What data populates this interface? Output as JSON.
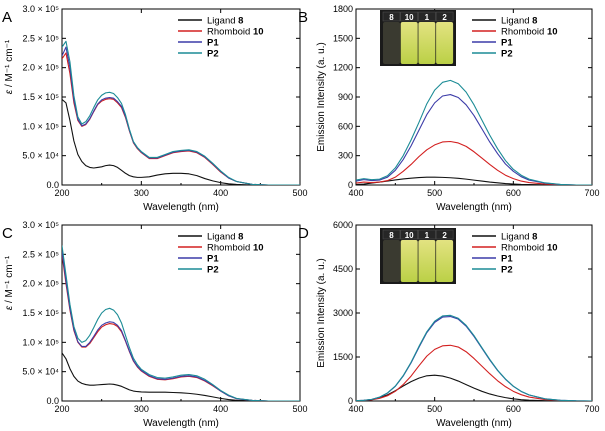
{
  "colors": {
    "ligand": "#111111",
    "rhomboid": "#d32020",
    "p1": "#3c3ca8",
    "p2": "#1c8c96",
    "vial_glow_top": "#f4f48a",
    "vial_glow_bottom": "#c9e04a",
    "vial_bg": "#1a1a1a"
  },
  "chart_data": [
    {
      "panel": "A",
      "type": "line",
      "xlabel": "Wavelength (nm)",
      "ylabel_prefix": "ε",
      "ylabel_suffix": " / M⁻¹ cm⁻¹",
      "xlim": [
        200,
        500
      ],
      "ylim": [
        0,
        300000
      ],
      "x_ticks": [
        "200",
        "300",
        "400",
        "500"
      ],
      "x_tick_values": [
        200,
        300,
        400,
        500
      ],
      "y_ticks": [
        "0.0",
        "5.0 × 10⁴",
        "1.0 × 10⁵",
        "1.5 × 10⁵",
        "2.0 × 10⁵",
        "2.5 × 10⁵",
        "3.0 × 10⁵"
      ],
      "y_tick_values": [
        0,
        50000,
        100000,
        150000,
        200000,
        250000,
        300000
      ],
      "legend": [
        "Ligand 8",
        "Rhomboid 10",
        "P1",
        "P2"
      ],
      "x": [
        200,
        205,
        210,
        215,
        220,
        225,
        230,
        235,
        240,
        245,
        250,
        255,
        260,
        265,
        270,
        275,
        280,
        285,
        290,
        295,
        300,
        310,
        320,
        330,
        340,
        350,
        360,
        370,
        380,
        390,
        400,
        410,
        420,
        440,
        460,
        480,
        500
      ],
      "series": [
        {
          "name": "Ligand 8",
          "key": "ligand",
          "values": [
            146000,
            140000,
            110000,
            75000,
            52000,
            40000,
            33000,
            30000,
            29000,
            30000,
            31000,
            33000,
            34000,
            33000,
            30000,
            25000,
            20000,
            16000,
            14000,
            13000,
            13000,
            14000,
            17000,
            19000,
            20000,
            20000,
            19000,
            16000,
            11000,
            7000,
            4000,
            2000,
            1000,
            0,
            0,
            0,
            0
          ]
        },
        {
          "name": "Rhomboid 10",
          "key": "rhomboid",
          "values": [
            215000,
            225000,
            190000,
            140000,
            110000,
            100000,
            103000,
            112000,
            125000,
            137000,
            143000,
            146000,
            147000,
            146000,
            140000,
            132000,
            115000,
            92000,
            72000,
            62000,
            55000,
            45000,
            45000,
            50000,
            55000,
            57000,
            58000,
            55000,
            47000,
            35000,
            22000,
            12000,
            6000,
            1000,
            0,
            0,
            0
          ]
        },
        {
          "name": "P1",
          "key": "p1",
          "values": [
            220000,
            235000,
            200000,
            145000,
            112000,
            101000,
            104000,
            113000,
            126000,
            138000,
            145000,
            148000,
            149000,
            148000,
            142000,
            134000,
            117000,
            93000,
            73000,
            63000,
            56000,
            46000,
            46000,
            51000,
            56000,
            58000,
            59000,
            56000,
            48000,
            36000,
            23000,
            12000,
            6000,
            1000,
            0,
            0,
            0
          ]
        },
        {
          "name": "P2",
          "key": "p2",
          "values": [
            235000,
            245000,
            210000,
            152000,
            116000,
            104000,
            108000,
            118000,
            132000,
            145000,
            153000,
            157000,
            158000,
            156000,
            149000,
            139000,
            120000,
            95000,
            74000,
            64000,
            57000,
            47000,
            47000,
            52000,
            57000,
            59000,
            60000,
            57000,
            49000,
            37000,
            24000,
            13000,
            6000,
            1000,
            0,
            0,
            0
          ]
        }
      ]
    },
    {
      "panel": "B",
      "type": "line",
      "xlabel": "Wavelength (nm)",
      "ylabel": "Emission Intensity (a. u.)",
      "xlim": [
        400,
        700
      ],
      "ylim": [
        0,
        1800
      ],
      "x_ticks": [
        "400",
        "500",
        "600",
        "700"
      ],
      "x_tick_values": [
        400,
        500,
        600,
        700
      ],
      "y_ticks": [
        "0",
        "300",
        "600",
        "900",
        "1200",
        "1500",
        "1800"
      ],
      "y_tick_values": [
        0,
        300,
        600,
        900,
        1200,
        1500,
        1800
      ],
      "legend": [
        "Ligand 8",
        "Rhomboid 10",
        "P1",
        "P2"
      ],
      "vial_labels": [
        "8",
        "10",
        "1",
        "2"
      ],
      "x": [
        400,
        410,
        420,
        430,
        440,
        450,
        460,
        470,
        480,
        490,
        500,
        510,
        520,
        530,
        540,
        550,
        560,
        570,
        580,
        590,
        600,
        610,
        620,
        640,
        660,
        680,
        700
      ],
      "series": [
        {
          "name": "Ligand 8",
          "key": "ligand",
          "values": [
            5,
            10,
            20,
            30,
            40,
            52,
            62,
            70,
            76,
            80,
            80,
            78,
            74,
            68,
            60,
            50,
            40,
            30,
            22,
            15,
            10,
            6,
            4,
            2,
            0,
            0,
            0
          ]
        },
        {
          "name": "Rhomboid 10",
          "key": "rhomboid",
          "values": [
            20,
            30,
            25,
            30,
            45,
            80,
            140,
            210,
            290,
            360,
            410,
            440,
            445,
            430,
            395,
            340,
            275,
            210,
            150,
            100,
            65,
            40,
            25,
            10,
            3,
            0,
            0
          ]
        },
        {
          "name": "P1",
          "key": "p1",
          "values": [
            40,
            55,
            45,
            50,
            80,
            150,
            260,
            400,
            560,
            720,
            840,
            910,
            925,
            895,
            820,
            710,
            575,
            440,
            320,
            215,
            140,
            85,
            50,
            20,
            5,
            0,
            0
          ]
        },
        {
          "name": "P2",
          "key": "p2",
          "values": [
            50,
            65,
            55,
            60,
            95,
            175,
            300,
            460,
            640,
            830,
            970,
            1050,
            1070,
            1035,
            950,
            820,
            665,
            510,
            370,
            250,
            160,
            100,
            60,
            22,
            6,
            0,
            0
          ]
        }
      ]
    },
    {
      "panel": "C",
      "type": "line",
      "xlabel": "Wavelength (nm)",
      "ylabel_prefix": "ε",
      "ylabel_suffix": " / M⁻¹ cm⁻¹",
      "xlim": [
        200,
        500
      ],
      "ylim": [
        0,
        300000
      ],
      "x_ticks": [
        "200",
        "300",
        "400",
        "500"
      ],
      "x_tick_values": [
        200,
        300,
        400,
        500
      ],
      "y_ticks": [
        "0.0",
        "5.0 × 10⁴",
        "1.0 × 10⁵",
        "1.5 × 10⁵",
        "2.0 × 10⁵",
        "2.5 × 10⁵",
        "3.0 × 10⁵"
      ],
      "y_tick_values": [
        0,
        50000,
        100000,
        150000,
        200000,
        250000,
        300000
      ],
      "legend": [
        "Ligand 8",
        "Rhomboid 10",
        "P1",
        "P2"
      ],
      "x": [
        200,
        205,
        210,
        215,
        220,
        225,
        230,
        235,
        240,
        245,
        250,
        255,
        260,
        265,
        270,
        275,
        280,
        285,
        290,
        295,
        300,
        310,
        320,
        330,
        340,
        350,
        360,
        370,
        380,
        390,
        400,
        410,
        420,
        440,
        460,
        480,
        500
      ],
      "series": [
        {
          "name": "Ligand 8",
          "key": "ligand",
          "values": [
            82000,
            72000,
            55000,
            42000,
            34000,
            30000,
            28000,
            27000,
            27000,
            27500,
            28000,
            28500,
            29000,
            28500,
            27000,
            25000,
            22000,
            19000,
            17000,
            16000,
            15500,
            15000,
            15000,
            15000,
            14500,
            14000,
            13000,
            11500,
            9500,
            7000,
            4500,
            2500,
            1200,
            300,
            0,
            0,
            0
          ]
        },
        {
          "name": "Rhomboid 10",
          "key": "rhomboid",
          "values": [
            250000,
            200000,
            155000,
            120000,
            100000,
            92000,
            92000,
            98000,
            108000,
            118000,
            126000,
            130000,
            132000,
            131000,
            127000,
            118000,
            102000,
            84000,
            68000,
            58000,
            51000,
            42000,
            37000,
            36000,
            38000,
            41000,
            42000,
            40000,
            34000,
            26000,
            17000,
            9000,
            4000,
            1000,
            0,
            0,
            0
          ]
        },
        {
          "name": "P1",
          "key": "p1",
          "values": [
            255000,
            205000,
            158000,
            122000,
            101000,
            93000,
            93000,
            100000,
            110000,
            121000,
            129000,
            133000,
            135000,
            134000,
            129000,
            120000,
            103000,
            85000,
            69000,
            59000,
            52000,
            43000,
            38000,
            37000,
            39000,
            42000,
            43000,
            41000,
            35000,
            27000,
            17000,
            9000,
            4000,
            1000,
            0,
            0,
            0
          ]
        },
        {
          "name": "P2",
          "key": "p2",
          "values": [
            265000,
            215000,
            165000,
            127000,
            107000,
            100000,
            103000,
            112000,
            125000,
            139000,
            150000,
            156000,
            158000,
            155000,
            147000,
            133000,
            112000,
            91000,
            73000,
            62000,
            54000,
            45000,
            40000,
            39000,
            41000,
            44000,
            45000,
            43000,
            37000,
            28000,
            18000,
            10000,
            4500,
            1000,
            0,
            0,
            0
          ]
        }
      ]
    },
    {
      "panel": "D",
      "type": "line",
      "xlabel": "Wavelength (nm)",
      "ylabel": "Emission Intensity (a. u.)",
      "xlim": [
        400,
        700
      ],
      "ylim": [
        0,
        6000
      ],
      "x_ticks": [
        "400",
        "500",
        "600",
        "700"
      ],
      "x_tick_values": [
        400,
        500,
        600,
        700
      ],
      "y_ticks": [
        "0",
        "1500",
        "3000",
        "4500",
        "6000"
      ],
      "y_tick_values": [
        0,
        1500,
        3000,
        4500,
        6000
      ],
      "legend": [
        "Ligand 8",
        "Rhomboid 10",
        "P1",
        "P2"
      ],
      "vial_labels": [
        "8",
        "10",
        "1",
        "2"
      ],
      "x": [
        400,
        410,
        420,
        430,
        440,
        450,
        460,
        470,
        480,
        490,
        500,
        510,
        520,
        530,
        540,
        550,
        560,
        570,
        580,
        590,
        600,
        610,
        620,
        640,
        660,
        680,
        700
      ],
      "series": [
        {
          "name": "Ligand 8",
          "key": "ligand",
          "values": [
            10,
            20,
            50,
            110,
            210,
            350,
            510,
            660,
            780,
            860,
            880,
            850,
            780,
            680,
            560,
            440,
            330,
            240,
            170,
            115,
            75,
            45,
            28,
            10,
            3,
            0,
            0
          ]
        },
        {
          "name": "Rhomboid 10",
          "key": "rhomboid",
          "values": [
            10,
            20,
            40,
            90,
            180,
            330,
            560,
            850,
            1200,
            1530,
            1760,
            1880,
            1900,
            1840,
            1680,
            1450,
            1190,
            930,
            690,
            490,
            330,
            215,
            135,
            50,
            15,
            3,
            0
          ]
        },
        {
          "name": "P1",
          "key": "p1",
          "values": [
            10,
            25,
            55,
            130,
            270,
            500,
            850,
            1300,
            1830,
            2330,
            2680,
            2860,
            2880,
            2790,
            2550,
            2200,
            1800,
            1400,
            1040,
            740,
            500,
            325,
            205,
            75,
            22,
            5,
            0
          ]
        },
        {
          "name": "P2",
          "key": "p2",
          "values": [
            10,
            25,
            55,
            130,
            275,
            510,
            865,
            1320,
            1860,
            2360,
            2720,
            2900,
            2920,
            2820,
            2580,
            2230,
            1820,
            1420,
            1050,
            750,
            505,
            330,
            208,
            76,
            22,
            5,
            0
          ]
        }
      ]
    }
  ]
}
